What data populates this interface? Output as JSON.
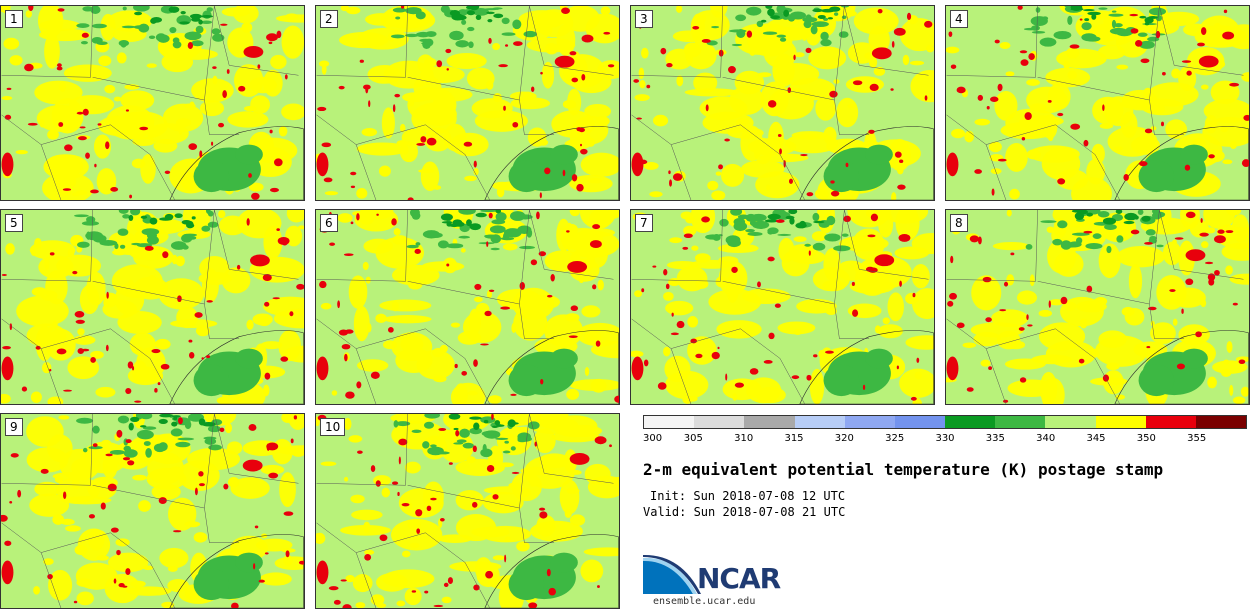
{
  "panels": [
    {
      "label": "1",
      "seed": 11
    },
    {
      "label": "2",
      "seed": 23
    },
    {
      "label": "3",
      "seed": 37
    },
    {
      "label": "4",
      "seed": 41
    },
    {
      "label": "5",
      "seed": 53
    },
    {
      "label": "6",
      "seed": 67
    },
    {
      "label": "7",
      "seed": 71
    },
    {
      "label": "8",
      "seed": 83
    },
    {
      "label": "9",
      "seed": 97
    },
    {
      "label": "10",
      "seed": 101
    }
  ],
  "colorbar": {
    "ticks": [
      "300",
      "305",
      "310",
      "315",
      "320",
      "325",
      "330",
      "335",
      "340",
      "345",
      "350",
      "355"
    ],
    "colors": [
      "#f4f4f4",
      "#dcdcdc",
      "#a9a9a9",
      "#b7cdf6",
      "#8fa8f2",
      "#7393ee",
      "#0a9a22",
      "#3db843",
      "#b8f27a",
      "#ffff00",
      "#e8000c",
      "#7a0000"
    ]
  },
  "title": "2-m equivalent potential temperature (K) postage stamp",
  "init": "Init: Sun 2018-07-08 12 UTC",
  "valid": "Valid: Sun 2018-07-08 21 UTC",
  "logo": {
    "name": "NCAR",
    "text": "NCAR",
    "site": "ensemble.ucar.edu"
  }
}
